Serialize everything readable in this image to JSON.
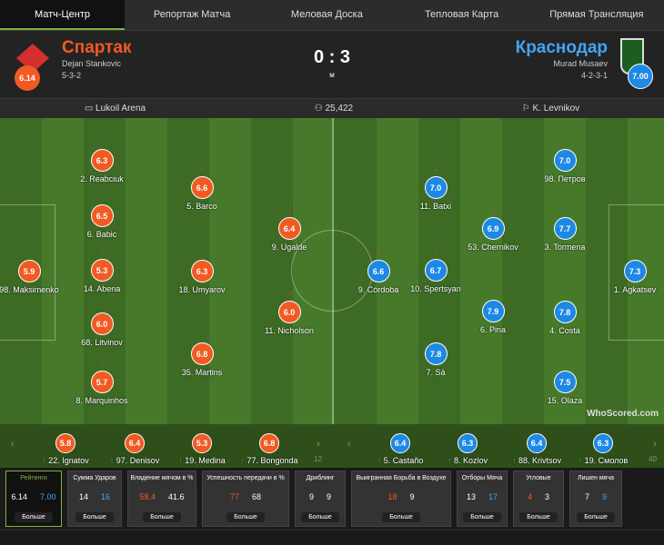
{
  "tabs": [
    "Матч-Центр",
    "Репортаж Матча",
    "Меловая Доска",
    "Тепловая Карта",
    "Прямая Трансляция"
  ],
  "home": {
    "name": "Спартак",
    "manager": "Dejan Stankovic",
    "formation": "5-3-2",
    "rating": "6.14",
    "color": "#f15a22"
  },
  "away": {
    "name": "Краснодар",
    "manager": "Murad Musaev",
    "formation": "4-2-3-1",
    "rating": "7.00",
    "color": "#1e88e5"
  },
  "score": "0 : 3",
  "status": "м",
  "info": {
    "stadium": "Lukoil Arena",
    "attendance": "25,422",
    "referee": "K. Levnikov"
  },
  "home_players": [
    {
      "r": "5.9",
      "n": "98. Maksimenko"
    },
    {
      "r": "6.3",
      "n": "2. Reabciuk"
    },
    {
      "r": "6.5",
      "n": "6. Babic"
    },
    {
      "r": "5.3",
      "n": "14. Abena"
    },
    {
      "r": "6.0",
      "n": "68. Litvinov"
    },
    {
      "r": "5.7",
      "n": "8. Marquinhos"
    },
    {
      "r": "6.6",
      "n": "5. Barco"
    },
    {
      "r": "6.3",
      "n": "18. Umyarov"
    },
    {
      "r": "6.8",
      "n": "35. Martins"
    },
    {
      "r": "6.4",
      "n": "9. Ugalde"
    },
    {
      "r": "6.0",
      "n": "11. Nicholson"
    }
  ],
  "away_players": [
    {
      "r": "6.6",
      "n": "9. Córdoba"
    },
    {
      "r": "7.0",
      "n": "11. Batxi"
    },
    {
      "r": "6.7",
      "n": "10. Spertsyan"
    },
    {
      "r": "7.8",
      "n": "7. Sá"
    },
    {
      "r": "6.9",
      "n": "53. Chernikov"
    },
    {
      "r": "7.9",
      "n": "6. Pina"
    },
    {
      "r": "7.0",
      "n": "98. Петров"
    },
    {
      "r": "7.7",
      "n": "3. Tormena"
    },
    {
      "r": "7.8",
      "n": "4. Costa"
    },
    {
      "r": "7.5",
      "n": "15. Olaza"
    },
    {
      "r": "7.3",
      "n": "1. Agkatsev"
    }
  ],
  "home_subs": [
    {
      "r": "5.8",
      "n": "22. Ignatov"
    },
    {
      "r": "6.4",
      "n": "97. Denisov"
    },
    {
      "r": "5.3",
      "n": "19. Medina"
    },
    {
      "r": "6.8",
      "n": "77. Bongonda"
    }
  ],
  "home_subs_more": "12",
  "away_subs": [
    {
      "r": "6.4",
      "n": "5. Castaño"
    },
    {
      "r": "6.3",
      "n": "8. Kozlov"
    },
    {
      "r": "6.4",
      "n": "88. Krivtsov"
    },
    {
      "r": "6.3",
      "n": "19. Смолов"
    }
  ],
  "away_subs_more": "40",
  "watermark": "WhoScored.com",
  "stats": [
    {
      "t": "Рейтинги",
      "h": "6.14",
      "a": "7.00"
    },
    {
      "t": "Сумма Ударов",
      "h": "14",
      "a": "16"
    },
    {
      "t": "Владение мячом в %",
      "h": "58.4",
      "a": "41.6"
    },
    {
      "t": "Успешность передачи в %",
      "h": "77",
      "a": "68"
    },
    {
      "t": "Дриблинг",
      "h": "9",
      "a": "9"
    },
    {
      "t": "Выигранная Борьба в Воздухе",
      "h": "18",
      "a": "9"
    },
    {
      "t": "Отборы Мяча",
      "h": "13",
      "a": "17"
    },
    {
      "t": "Угловые",
      "h": "4",
      "a": "3"
    },
    {
      "t": "Лишен мяча",
      "h": "7",
      "a": "9"
    }
  ],
  "more_label": "Больше"
}
